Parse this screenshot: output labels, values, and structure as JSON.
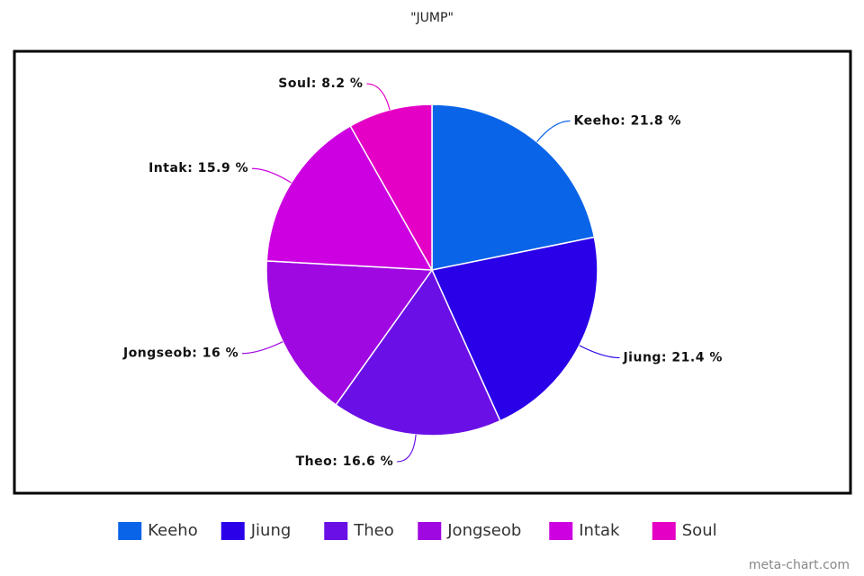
{
  "chart_data": {
    "type": "pie",
    "title": "\"JUMP\"",
    "categories": [
      "Keeho",
      "Jiung",
      "Theo",
      "Jongseob",
      "Intak",
      "Soul"
    ],
    "values": [
      21.8,
      21.4,
      16.6,
      16,
      15.9,
      8.2
    ],
    "value_labels": [
      "Keeho: 21.8 %",
      "Jiung: 21.4 %",
      "Theo: 16.6 %",
      "Jongseob: 16 %",
      "Intak: 15.9 %",
      "Soul: 8.2 %"
    ],
    "colors": [
      "#0a64e8",
      "#2a00e8",
      "#6a10e6",
      "#a008e2",
      "#cc00e0",
      "#e400c4"
    ],
    "legend": "bottom",
    "watermark": "meta-chart.com"
  }
}
